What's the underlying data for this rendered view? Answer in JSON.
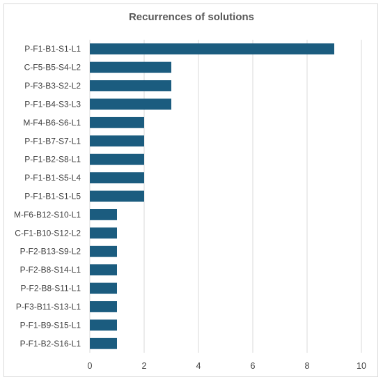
{
  "chart_data": {
    "type": "bar",
    "orientation": "horizontal",
    "title": "Recurrences of solutions",
    "xlabel": "",
    "ylabel": "",
    "xlim": [
      0,
      10
    ],
    "x_ticks": [
      0,
      2,
      4,
      6,
      8,
      10
    ],
    "grid": "vertical",
    "legend": "none",
    "bar_color": "#1b5c7f",
    "categories": [
      "P-F1-B1-S1-L1",
      "C-F5-B5-S4-L2",
      "P-F3-B3-S2-L2",
      "P-F1-B4-S3-L3",
      "M-F4-B6-S6-L1",
      "P-F1-B7-S7-L1",
      "P-F1-B2-S8-L1",
      "P-F1-B1-S5-L4",
      "P-F1-B1-S1-L5",
      "M-F6-B12-S10-L1",
      "C-F1-B10-S12-L2",
      "P-F2-B13-S9-L2",
      "P-F2-B8-S14-L1",
      "P-F2-B8-S11-L1",
      "P-F3-B11-S13-L1",
      "P-F1-B9-S15-L1",
      "P-F1-B2-S16-L1"
    ],
    "values": [
      9,
      3,
      3,
      3,
      2,
      2,
      2,
      2,
      2,
      1,
      1,
      1,
      1,
      1,
      1,
      1,
      1
    ]
  }
}
